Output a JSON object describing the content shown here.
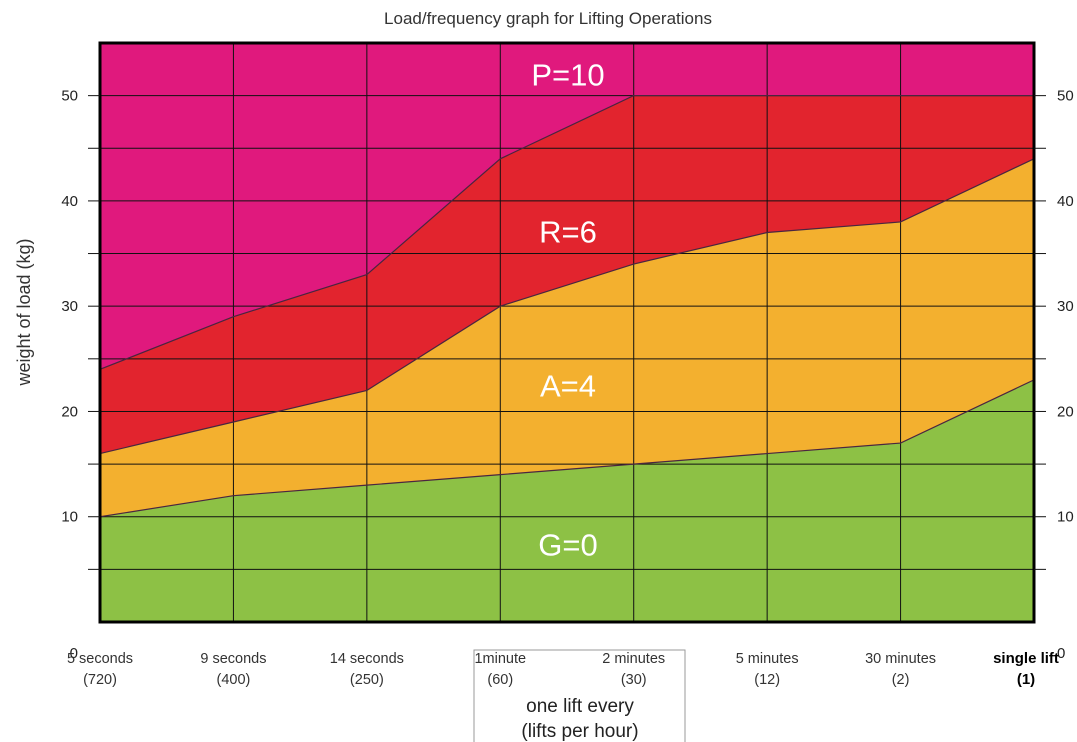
{
  "chart_data": {
    "type": "area",
    "title": "Load/frequency graph for Lifting Operations",
    "ylabel": "weight of load (kg)",
    "xlabel": [
      "one lift every",
      "(lifts per hour)"
    ],
    "categories": [
      "5 seconds",
      "9 seconds",
      "14 seconds",
      "1minute",
      "2 minutes",
      "5 minutes",
      "30 minutes",
      "single lift"
    ],
    "lifts_per_hour": [
      "(720)",
      "(400)",
      "(250)",
      "(60)",
      "(30)",
      "(12)",
      "(2)",
      "(1)"
    ],
    "ylim": [
      0,
      55
    ],
    "yticks": [
      0,
      10,
      20,
      30,
      40,
      50
    ],
    "grid_step": 5,
    "grid": true,
    "zones": [
      {
        "name": "G=0",
        "color": "#8dc145",
        "upper": [
          10,
          12,
          13,
          14,
          15,
          16,
          17,
          23
        ]
      },
      {
        "name": "A=4",
        "color": "#f3b02f",
        "upper": [
          16,
          19,
          22,
          30,
          34,
          37,
          38,
          44
        ]
      },
      {
        "name": "R=6",
        "color": "#e2242e",
        "upper": [
          24,
          29,
          33,
          44,
          50,
          50,
          50,
          50
        ]
      },
      {
        "name": "P=10",
        "color": "#e0197d"
      }
    ]
  }
}
